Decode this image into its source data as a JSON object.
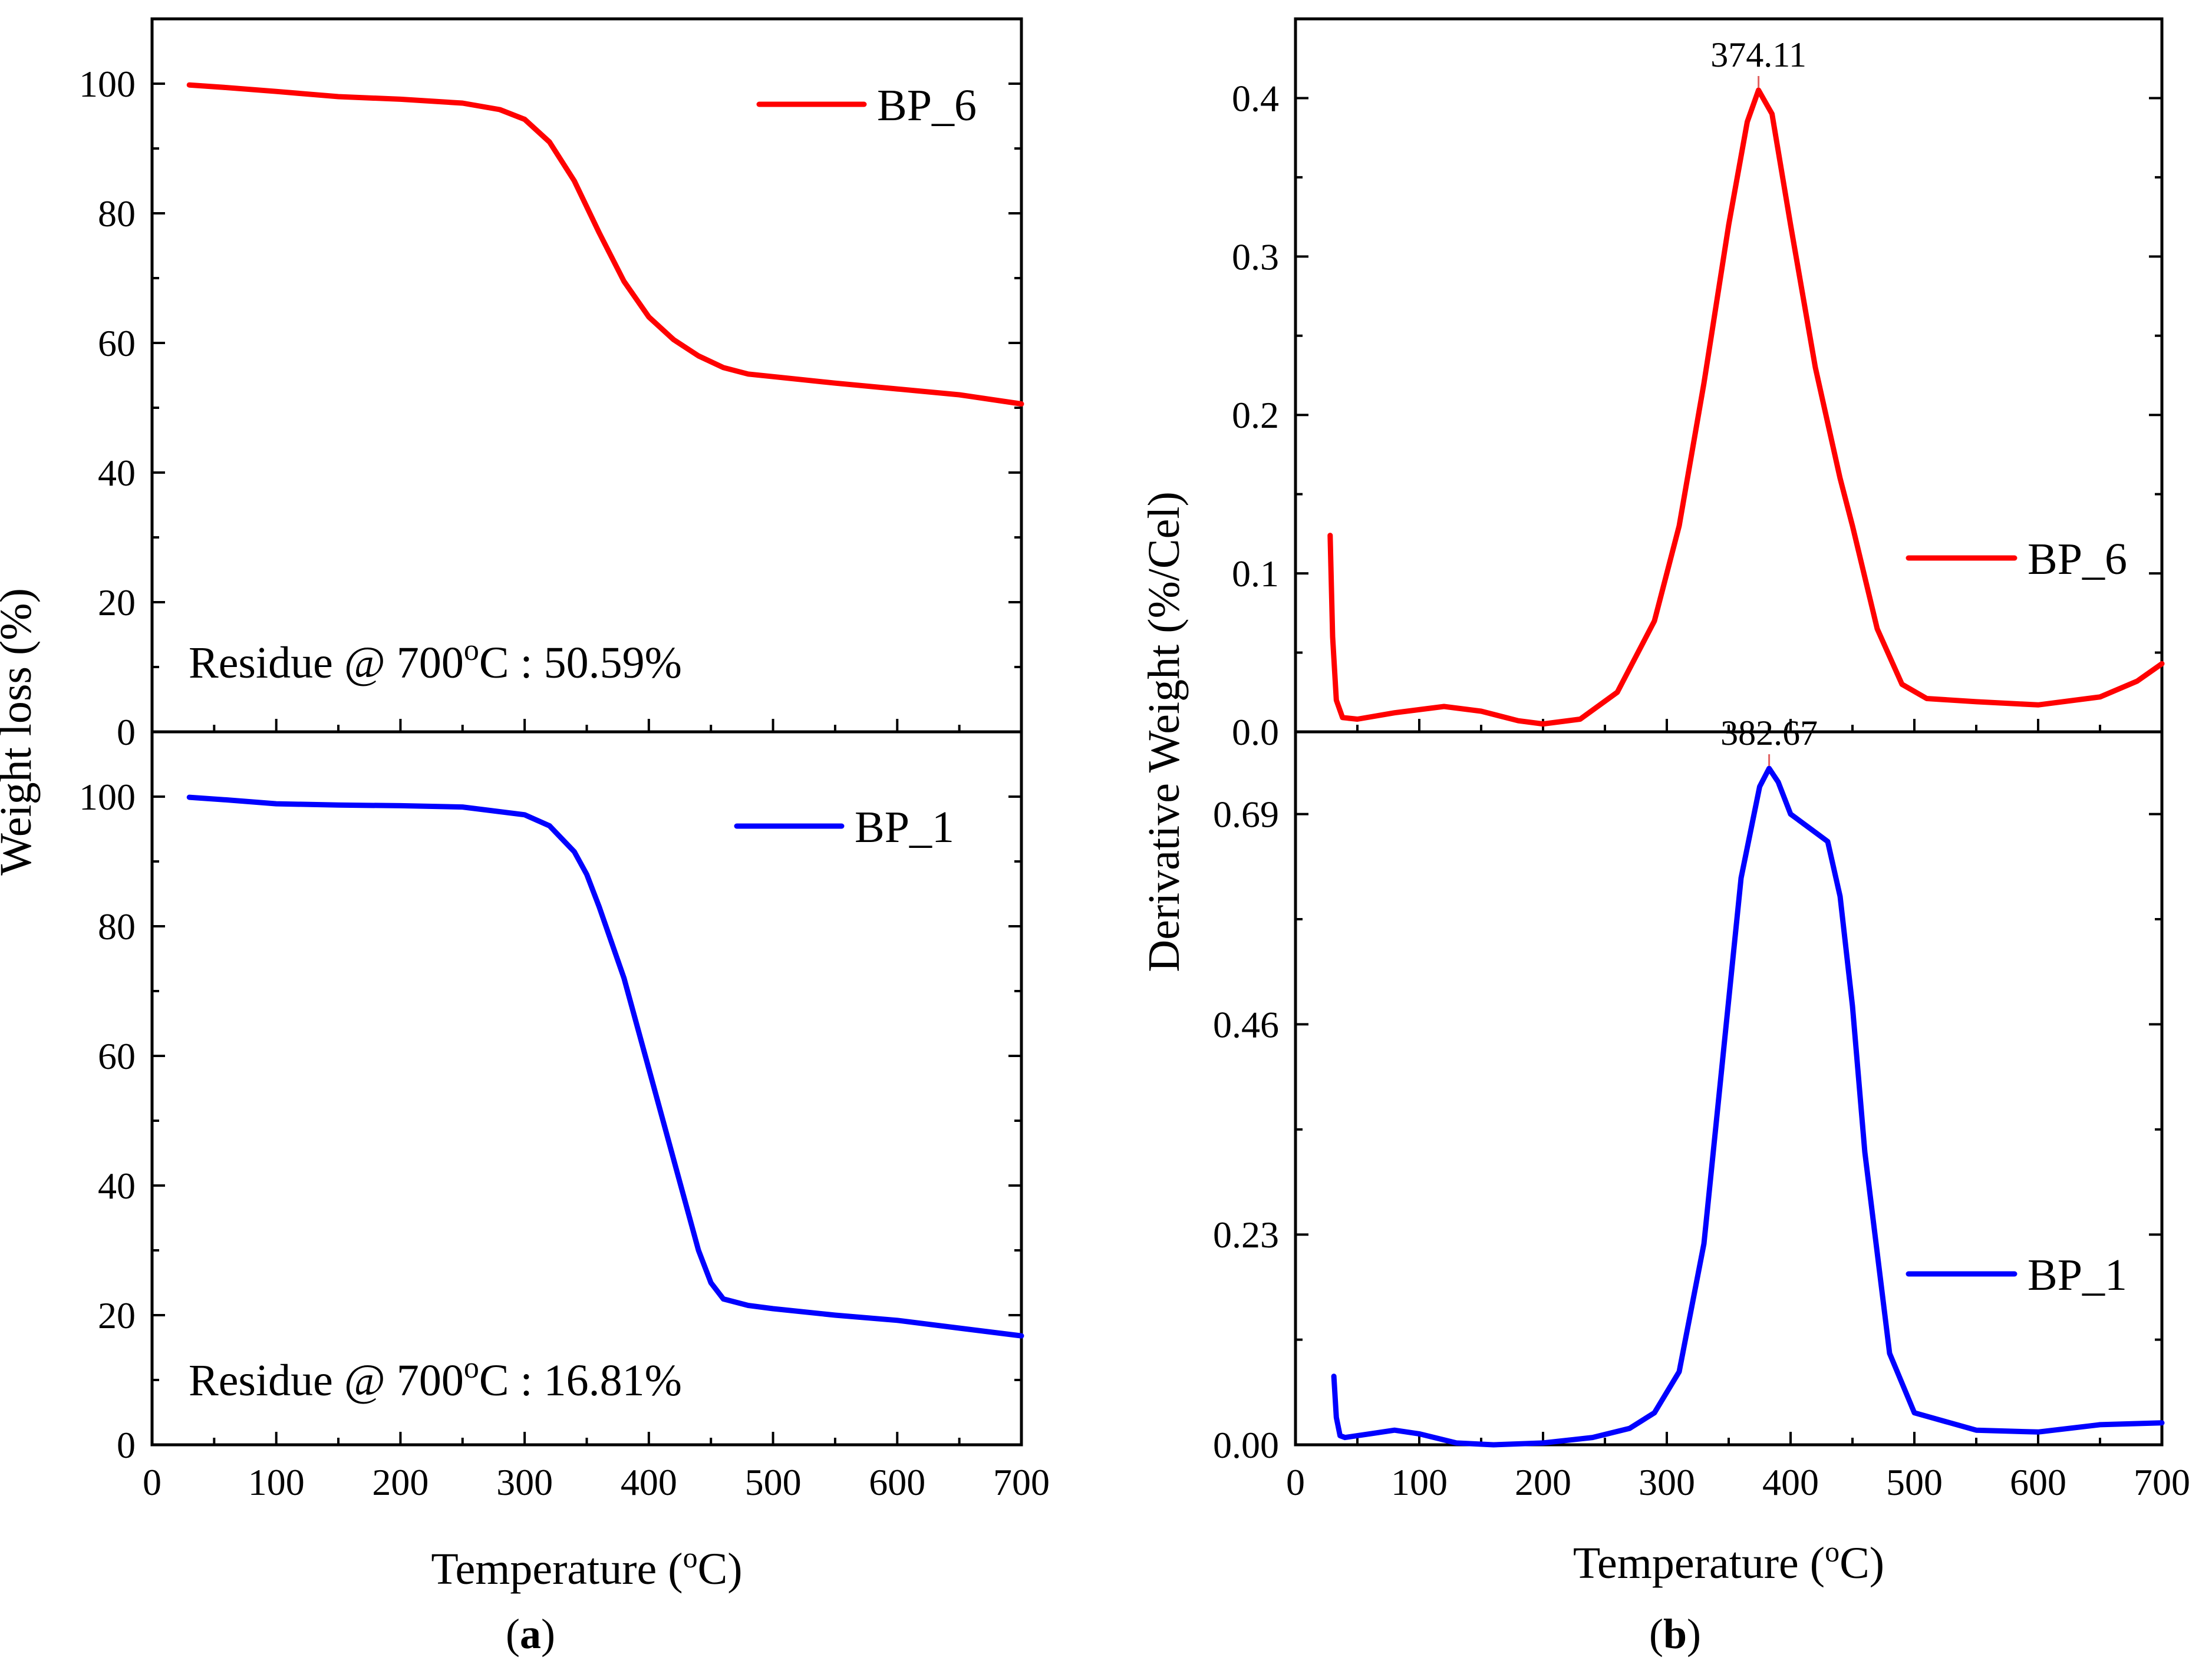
{
  "colors": {
    "bp6": "#ff0000",
    "bp1": "#0000ff",
    "axis": "#000000"
  },
  "chart_data": [
    {
      "id": "tga",
      "panel_label": "(a)",
      "panel_letter": "a",
      "type": "line",
      "xlabel": "Temperature (oC)",
      "xlabel_main": "Temperature (",
      "xlabel_sup": "o",
      "xlabel_end": "C)",
      "ylabel": "Weight loss (%)",
      "xlim": [
        0,
        700
      ],
      "xticks": [
        "0",
        "100",
        "200",
        "300",
        "400",
        "500",
        "600",
        "700"
      ],
      "subplots": [
        {
          "position": "top",
          "ylim": [
            0,
            110
          ],
          "yticks": [
            "0",
            "20",
            "40",
            "60",
            "80",
            "100"
          ],
          "series": [
            {
              "name": "BP_6",
              "color": "#ff0000",
              "x": [
                30,
                60,
                100,
                150,
                200,
                250,
                280,
                300,
                320,
                340,
                360,
                380,
                400,
                420,
                440,
                460,
                480,
                500,
                550,
                600,
                650,
                700
              ],
              "y": [
                99.8,
                99.4,
                98.8,
                98.0,
                97.6,
                97.0,
                96.0,
                94.5,
                91.0,
                85.0,
                77.0,
                69.5,
                64.0,
                60.5,
                58.0,
                56.2,
                55.2,
                54.8,
                53.8,
                52.9,
                52.0,
                50.59
              ]
            }
          ],
          "legend": {
            "label": "BP_6",
            "placement": "top-right"
          },
          "annotation": {
            "main": "Residue @ 700",
            "sup": "o",
            "end": "C : 50.59%"
          }
        },
        {
          "position": "bottom",
          "ylim": [
            0,
            110
          ],
          "yticks": [
            "0",
            "20",
            "40",
            "60",
            "80",
            "100"
          ],
          "series": [
            {
              "name": "BP_1",
              "color": "#0000ff",
              "x": [
                30,
                60,
                100,
                150,
                200,
                250,
                300,
                320,
                340,
                350,
                360,
                380,
                400,
                420,
                440,
                450,
                460,
                480,
                500,
                550,
                600,
                650,
                700
              ],
              "y": [
                99.9,
                99.5,
                98.9,
                98.7,
                98.6,
                98.4,
                97.2,
                95.5,
                91.5,
                88.0,
                83.0,
                72.0,
                58.0,
                44.0,
                30.0,
                25.0,
                22.5,
                21.5,
                21.0,
                20.0,
                19.2,
                18.0,
                16.81
              ]
            }
          ],
          "legend": {
            "label": "BP_1",
            "placement": "top-right"
          },
          "annotation": {
            "main": "Residue @ 700",
            "sup": "o",
            "end": "C : 16.81%"
          }
        }
      ]
    },
    {
      "id": "dtg",
      "panel_label": "(b)",
      "panel_letter": "b",
      "type": "line",
      "xlabel": "Temperature (oC)",
      "xlabel_main": "Temperature (",
      "xlabel_sup": "o",
      "xlabel_end": "C)",
      "ylabel": "Derivative Weight (%/Cel)",
      "xlim": [
        0,
        700
      ],
      "xticks": [
        "0",
        "100",
        "200",
        "300",
        "400",
        "500",
        "600",
        "700"
      ],
      "subplots": [
        {
          "position": "top",
          "ylim": [
            0,
            0.45
          ],
          "yticks": [
            "0.0",
            "0.1",
            "0.2",
            "0.3",
            "0.4"
          ],
          "ytick_values": [
            0.0,
            0.1,
            0.2,
            0.3,
            0.4
          ],
          "series": [
            {
              "name": "BP_6",
              "color": "#ff0000",
              "x": [
                28,
                30,
                33,
                38,
                50,
                80,
                120,
                150,
                180,
                200,
                230,
                260,
                290,
                310,
                330,
                350,
                365,
                374.11,
                385,
                400,
                420,
                440,
                450,
                470,
                490,
                510,
                550,
                600,
                650,
                680,
                700
              ],
              "y": [
                0.124,
                0.06,
                0.02,
                0.009,
                0.008,
                0.012,
                0.016,
                0.013,
                0.007,
                0.005,
                0.008,
                0.025,
                0.07,
                0.13,
                0.22,
                0.32,
                0.385,
                0.405,
                0.39,
                0.32,
                0.23,
                0.16,
                0.13,
                0.065,
                0.03,
                0.021,
                0.019,
                0.017,
                0.022,
                0.032,
                0.043
              ]
            }
          ],
          "legend": {
            "label": "BP_6",
            "placement": "right"
          },
          "peak": {
            "x": 374.11,
            "y": 0.405,
            "label": "374.11"
          }
        },
        {
          "position": "bottom",
          "ylim": [
            0,
            0.78
          ],
          "yticks": [
            "0.00",
            "0.23",
            "0.46",
            "0.69"
          ],
          "ytick_values": [
            0.0,
            0.23,
            0.46,
            0.69
          ],
          "series": [
            {
              "name": "BP_1",
              "color": "#0000ff",
              "x": [
                31,
                33,
                36,
                40,
                60,
                80,
                100,
                130,
                160,
                200,
                240,
                270,
                290,
                310,
                330,
                345,
                360,
                375,
                382.67,
                390,
                400,
                410,
                420,
                430,
                440,
                450,
                460,
                480,
                500,
                550,
                600,
                650,
                700
              ],
              "y": [
                0.075,
                0.03,
                0.01,
                0.008,
                0.012,
                0.016,
                0.012,
                0.002,
                0.0,
                0.002,
                0.008,
                0.018,
                0.035,
                0.08,
                0.22,
                0.42,
                0.62,
                0.72,
                0.74,
                0.725,
                0.69,
                0.68,
                0.67,
                0.66,
                0.6,
                0.48,
                0.32,
                0.1,
                0.035,
                0.016,
                0.014,
                0.022,
                0.024
              ]
            }
          ],
          "legend": {
            "label": "BP_1",
            "placement": "right"
          },
          "peak": {
            "x": 382.67,
            "y": 0.74,
            "label": "382.67"
          }
        }
      ]
    }
  ]
}
